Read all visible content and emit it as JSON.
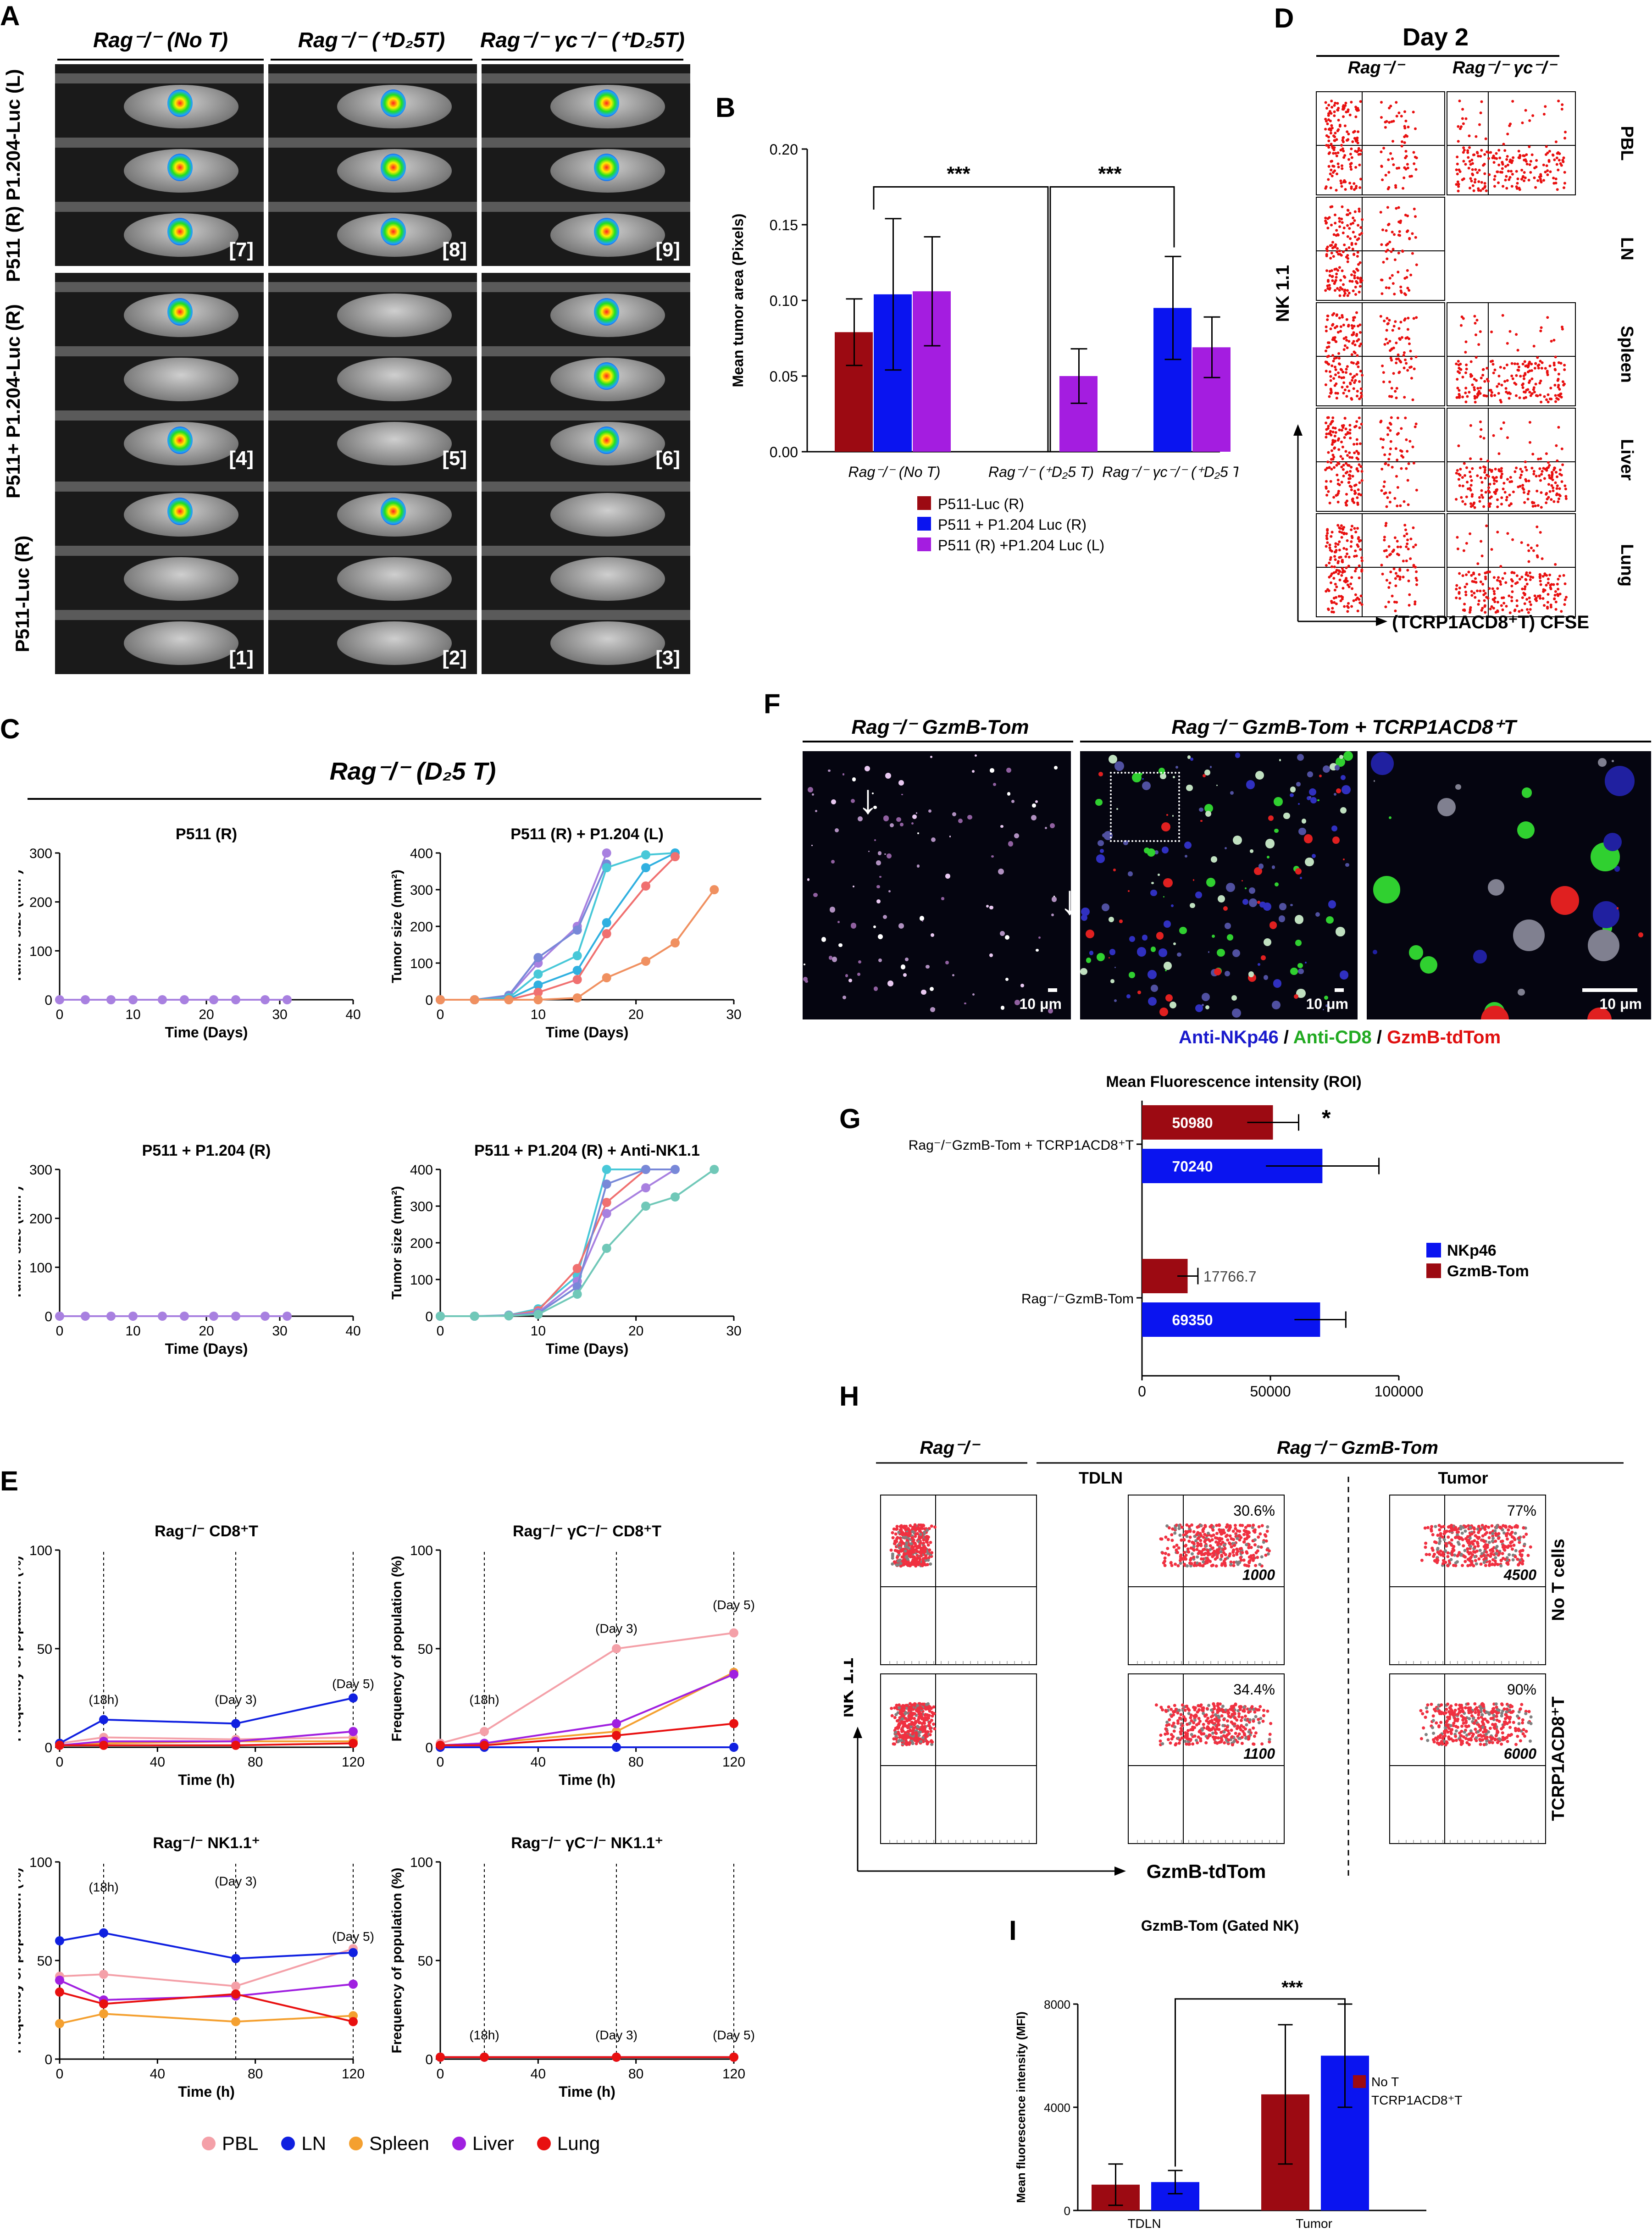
{
  "panels": {
    "A": "A",
    "B": "B",
    "C": "C",
    "D": "D",
    "E": "E",
    "F": "F",
    "G": "G",
    "H": "H",
    "I": "I"
  },
  "panelA": {
    "col_headers": [
      "Rag⁻/⁻ (No T)",
      "Rag⁻/⁻ (⁺D₂5T)",
      "Rag⁻/⁻ γc⁻/⁻ (⁺D₂5T)"
    ],
    "row_labels": [
      "P511 (R) P1.204-Luc (L)",
      "P511+ P1.204-Luc (R)",
      "P511-Luc (R)"
    ],
    "tile_numbers": [
      "[7]",
      "[8]",
      "[9]",
      "[4]",
      "[5]",
      "[6]",
      "[1]",
      "[2]",
      "[3]"
    ]
  },
  "panelB": {
    "chart_data": {
      "type": "bar",
      "ylabel": "Mean tumor area (Pixels)",
      "ylim": [
        0,
        0.2
      ],
      "yticks": [
        "0.00",
        "0.05",
        "0.10",
        "0.15",
        "0.20"
      ],
      "categories": [
        "Rag⁻/⁻ (No T)",
        "Rag⁻/⁻ (⁺D₂5 T)",
        "Rag⁻/⁻ γc⁻/⁻ (⁺D₂5 T)"
      ],
      "series": [
        {
          "name": "P511-Luc (R)",
          "color": "#9c0a12",
          "values": [
            0.079,
            0.0,
            0.0
          ],
          "err": [
            0.022,
            0.0,
            0.0
          ]
        },
        {
          "name": "P511 + P1.204 Luc (R)",
          "color": "#0a14f0",
          "values": [
            0.104,
            0.0,
            0.095
          ],
          "err": [
            0.05,
            0.0,
            0.034
          ]
        },
        {
          "name": "P511 (R) +P1.204 Luc (L)",
          "color": "#a41de0",
          "values": [
            0.106,
            0.05,
            0.069
          ],
          "err": [
            0.036,
            0.018,
            0.02
          ]
        }
      ],
      "significance": [
        "***",
        "***"
      ]
    }
  },
  "panelC": {
    "main_title": "Rag⁻/⁻ (D₂5 T)",
    "chart_data": [
      {
        "type": "line",
        "title": "P511 (R)",
        "xlabel": "Time (Days)",
        "ylabel": "Tumor size (mm²)",
        "xlim": [
          0,
          40
        ],
        "ylim": [
          0,
          300
        ],
        "xticks": [
          "0",
          "10",
          "20",
          "30",
          "40"
        ],
        "yticks": [
          "0",
          "100",
          "200",
          "300"
        ],
        "x": [
          0,
          3.5,
          7,
          10,
          14,
          17,
          21,
          24,
          28,
          31
        ],
        "series": [
          {
            "color": "#a880e0",
            "values": [
              0,
              0,
              0,
              0,
              0,
              0,
              0,
              0,
              0,
              0
            ]
          }
        ]
      },
      {
        "type": "line",
        "title": "P511 (R) + P1.204 (L)",
        "xlabel": "Time (Days)",
        "ylabel": "Tumor size (mm²)",
        "xlim": [
          0,
          30
        ],
        "ylim": [
          0,
          400
        ],
        "xticks": [
          "0",
          "10",
          "20",
          "30"
        ],
        "yticks": [
          "0",
          "100",
          "200",
          "300",
          "400"
        ],
        "series": [
          {
            "color": "#a880e0",
            "x": [
              0,
              3.5,
              7,
              10,
              14,
              17
            ],
            "values": [
              0,
              0,
              10,
              100,
              200,
              400
            ]
          },
          {
            "color": "#7888d8",
            "x": [
              0,
              3.5,
              7,
              10,
              14,
              17
            ],
            "values": [
              0,
              0,
              12,
              115,
              190,
              370
            ]
          },
          {
            "color": "#48c8d8",
            "x": [
              0,
              3.5,
              7,
              10,
              14,
              17,
              21,
              24
            ],
            "values": [
              0,
              0,
              5,
              70,
              120,
              360,
              395,
              400
            ]
          },
          {
            "color": "#30b0e0",
            "x": [
              0,
              3.5,
              7,
              10,
              14,
              17,
              21,
              24
            ],
            "values": [
              0,
              0,
              2,
              40,
              80,
              210,
              360,
              400
            ]
          },
          {
            "color": "#f07070",
            "x": [
              0,
              3.5,
              7,
              10,
              14,
              17,
              21,
              24
            ],
            "values": [
              0,
              0,
              0,
              20,
              55,
              180,
              310,
              390
            ]
          },
          {
            "color": "#f09060",
            "x": [
              0,
              3.5,
              7,
              10,
              14,
              17,
              21,
              24,
              28
            ],
            "values": [
              0,
              0,
              0,
              0,
              5,
              60,
              105,
              155,
              300
            ]
          }
        ]
      },
      {
        "type": "line",
        "title": "P511 + P1.204 (R)",
        "xlabel": "Time (Days)",
        "ylabel": "Tumor size (mm²)",
        "xlim": [
          0,
          40
        ],
        "ylim": [
          0,
          300
        ],
        "xticks": [
          "0",
          "10",
          "20",
          "30",
          "40"
        ],
        "yticks": [
          "0",
          "100",
          "200",
          "300"
        ],
        "x": [
          0,
          3.5,
          7,
          10,
          14,
          17,
          21,
          24,
          28,
          31
        ],
        "series": [
          {
            "color": "#a880e0",
            "values": [
              0,
              0,
              0,
              0,
              0,
              0,
              0,
              0,
              0,
              0
            ]
          }
        ]
      },
      {
        "type": "line",
        "title": "P511 + P1.204 (R) + Anti-NK1.1",
        "xlabel": "Time (Days)",
        "ylabel": "Tumor size (mm²)",
        "xlim": [
          0,
          30
        ],
        "ylim": [
          0,
          400
        ],
        "xticks": [
          "0",
          "10",
          "20",
          "30"
        ],
        "yticks": [
          "0",
          "100",
          "200",
          "300",
          "400"
        ],
        "series": [
          {
            "color": "#48c8d8",
            "x": [
              0,
              3.5,
              7,
              10,
              14,
              17,
              21
            ],
            "values": [
              0,
              0,
              3,
              20,
              110,
              400,
              400
            ]
          },
          {
            "color": "#f07070",
            "x": [
              0,
              3.5,
              7,
              10,
              14,
              17,
              21
            ],
            "values": [
              0,
              0,
              2,
              15,
              130,
              310,
              400
            ]
          },
          {
            "color": "#a880e0",
            "x": [
              0,
              3.5,
              7,
              10,
              14,
              17,
              21,
              24
            ],
            "values": [
              0,
              0,
              2,
              10,
              95,
              280,
              350,
              400
            ]
          },
          {
            "color": "#7888d8",
            "x": [
              0,
              3.5,
              7,
              10,
              14,
              17,
              21,
              24
            ],
            "values": [
              0,
              0,
              1,
              8,
              80,
              360,
              400,
              400
            ]
          },
          {
            "color": "#70c8b8",
            "x": [
              0,
              3.5,
              7,
              10,
              14,
              17,
              21,
              24,
              28
            ],
            "values": [
              0,
              0,
              1,
              5,
              60,
              185,
              300,
              325,
              400
            ]
          }
        ]
      }
    ]
  },
  "panelD": {
    "title": "Day 2",
    "col_headers": [
      "Rag⁻/⁻",
      "Rag⁻/⁻ γc⁻/⁻"
    ],
    "row_labels": [
      "PBL",
      "LN",
      "Spleen",
      "Liver",
      "Lung"
    ],
    "ylabel": "NK 1.1",
    "xlabel": "(TCRP1ACD8⁺T) CFSE"
  },
  "panelE": {
    "chart_data": [
      {
        "type": "line",
        "title": "Rag⁻/⁻ CD8⁺T",
        "xlabel": "Time (h)",
        "ylabel": "Frequency of population (%)",
        "xlim": [
          0,
          120
        ],
        "ylim": [
          0,
          100
        ],
        "xticks": [
          "0",
          "40",
          "80",
          "120"
        ],
        "yticks": [
          "0",
          "50",
          "100"
        ],
        "x": [
          0,
          18,
          72,
          120
        ],
        "annotations": [
          "(18h)",
          "(Day 3)",
          "(Day 5)"
        ],
        "series": [
          {
            "name": "PBL",
            "values": [
              2,
              5,
              4,
              5
            ]
          },
          {
            "name": "LN",
            "values": [
              2,
              14,
              12,
              25
            ]
          },
          {
            "name": "Spleen",
            "values": [
              1,
              2,
              3,
              3
            ]
          },
          {
            "name": "Liver",
            "values": [
              1,
              3,
              3,
              8
            ]
          },
          {
            "name": "Lung",
            "values": [
              1,
              1,
              1,
              2
            ]
          }
        ]
      },
      {
        "type": "line",
        "title": "Rag⁻/⁻ γC⁻/⁻ CD8⁺T",
        "xlabel": "Time (h)",
        "ylabel": "Frequency of population (%)",
        "xlim": [
          0,
          120
        ],
        "ylim": [
          0,
          100
        ],
        "xticks": [
          "0",
          "40",
          "80",
          "120"
        ],
        "yticks": [
          "0",
          "50",
          "100"
        ],
        "x": [
          0,
          18,
          72,
          120
        ],
        "annotations": [
          "(18h)",
          "(Day 3)",
          "(Day 5)"
        ],
        "series": [
          {
            "name": "PBL",
            "values": [
              2,
              8,
              50,
              58
            ]
          },
          {
            "name": "LN",
            "values": [
              0,
              0,
              0,
              0
            ]
          },
          {
            "name": "Spleen",
            "values": [
              1,
              2,
              8,
              38
            ]
          },
          {
            "name": "Liver",
            "values": [
              1,
              2,
              12,
              37
            ]
          },
          {
            "name": "Lung",
            "values": [
              1,
              1,
              6,
              12
            ]
          }
        ]
      },
      {
        "type": "line",
        "title": "Rag⁻/⁻ NK1.1⁺",
        "xlabel": "Time (h)",
        "ylabel": "Frequency of population (%)",
        "xlim": [
          0,
          120
        ],
        "ylim": [
          0,
          100
        ],
        "xticks": [
          "0",
          "40",
          "80",
          "120"
        ],
        "yticks": [
          "0",
          "50",
          "100"
        ],
        "x": [
          0,
          18,
          72,
          120
        ],
        "annotations": [
          "(18h)",
          "(Day 3)",
          "(Day 5)"
        ],
        "series": [
          {
            "name": "PBL",
            "values": [
              42,
              43,
              37,
              56
            ]
          },
          {
            "name": "LN",
            "values": [
              60,
              64,
              51,
              54
            ]
          },
          {
            "name": "Spleen",
            "values": [
              18,
              23,
              19,
              22
            ]
          },
          {
            "name": "Liver",
            "values": [
              40,
              30,
              32,
              38
            ]
          },
          {
            "name": "Lung",
            "values": [
              34,
              28,
              33,
              19
            ]
          }
        ]
      },
      {
        "type": "line",
        "title": "Rag⁻/⁻ γC⁻/⁻ NK1.1⁺",
        "xlabel": "Time (h)",
        "ylabel": "Frequency of population (%)",
        "xlim": [
          0,
          120
        ],
        "ylim": [
          0,
          100
        ],
        "xticks": [
          "0",
          "40",
          "80",
          "120"
        ],
        "yticks": [
          "0",
          "50",
          "100"
        ],
        "x": [
          0,
          18,
          72,
          120
        ],
        "annotations": [
          "(18h)",
          "(Day 3)",
          "(Day 5)"
        ],
        "series": [
          {
            "name": "PBL",
            "values": [
              1,
              1,
              1,
              1
            ]
          },
          {
            "name": "LN",
            "values": [
              1,
              1,
              1,
              1
            ]
          },
          {
            "name": "Spleen",
            "values": [
              1,
              1,
              1,
              1
            ]
          },
          {
            "name": "Liver",
            "values": [
              1,
              1,
              1,
              1
            ]
          },
          {
            "name": "Lung",
            "values": [
              1,
              1,
              1,
              1
            ]
          }
        ]
      }
    ],
    "legend": [
      {
        "name": "PBL",
        "color": "#f4a0a8"
      },
      {
        "name": "LN",
        "color": "#1020e0"
      },
      {
        "name": "Spleen",
        "color": "#f4a030"
      },
      {
        "name": "Liver",
        "color": "#a020e0"
      },
      {
        "name": "Lung",
        "color": "#e81010"
      }
    ]
  },
  "panelF": {
    "headers": [
      "Rag⁻/⁻ GzmB-Tom",
      "Rag⁻/⁻ GzmB-Tom + TCRP1ACD8⁺T"
    ],
    "scale": "10 μm",
    "legend": [
      {
        "text": "Anti-NKp46",
        "color": "#1a1acc"
      },
      {
        "text": " / ",
        "color": "#000"
      },
      {
        "text": "Anti-CD8",
        "color": "#22aa22"
      },
      {
        "text": " / ",
        "color": "#000"
      },
      {
        "text": "GzmB-tdTom",
        "color": "#e01010"
      }
    ]
  },
  "panelG": {
    "chart_data": {
      "type": "bar",
      "title": "Mean Fluorescence intensity (ROI)",
      "categories": [
        "Rag⁻/⁻GzmB-Tom + TCRP1ACD8⁺T",
        "Rag⁻/⁻GzmB-Tom"
      ],
      "xlim": [
        0,
        100000
      ],
      "xticks": [
        "0",
        "50000",
        "100000"
      ],
      "series": [
        {
          "name": "GzmB-Tom",
          "color": "#9c0a12",
          "values": [
            50980,
            17766.7
          ],
          "err": [
            10000,
            4000
          ]
        },
        {
          "name": "NKp46",
          "color": "#0a14f0",
          "values": [
            70240,
            69350
          ],
          "err": [
            22000,
            10000
          ]
        }
      ],
      "value_labels": [
        "50980",
        "70240",
        "17766.7",
        "69350"
      ],
      "significance": "*"
    }
  },
  "panelH": {
    "headers": [
      "Rag⁻/⁻",
      "Rag⁻/⁻ GzmB-Tom"
    ],
    "subheaders": [
      "TDLN",
      "Tumor"
    ],
    "row_labels": [
      "No T cells",
      "TCRP1ACD8⁺T"
    ],
    "ylabel": "NK 1.1",
    "xlabel": "GzmB-tdTom",
    "percents": [
      "30.6%",
      "77%",
      "34.4%",
      "90%"
    ],
    "mfi": [
      "1000",
      "4500",
      "1100",
      "6000"
    ]
  },
  "panelI": {
    "chart_data": {
      "type": "bar",
      "title": "GzmB-Tom (Gated NK)",
      "ylabel": "Mean fluorescence intensity (MFI)",
      "categories": [
        "TDLN",
        "Tumor"
      ],
      "ylim": [
        0,
        8000
      ],
      "yticks": [
        "0",
        "4000",
        "8000"
      ],
      "series": [
        {
          "name": "No T",
          "color": "#9c0a12",
          "values": [
            1000,
            4500
          ],
          "err": [
            800,
            2700
          ]
        },
        {
          "name": "TCRP1ACD8⁺T",
          "color": "#0a14f0",
          "values": [
            1100,
            6000
          ],
          "err": [
            450,
            2000
          ]
        }
      ],
      "significance": "***"
    }
  }
}
